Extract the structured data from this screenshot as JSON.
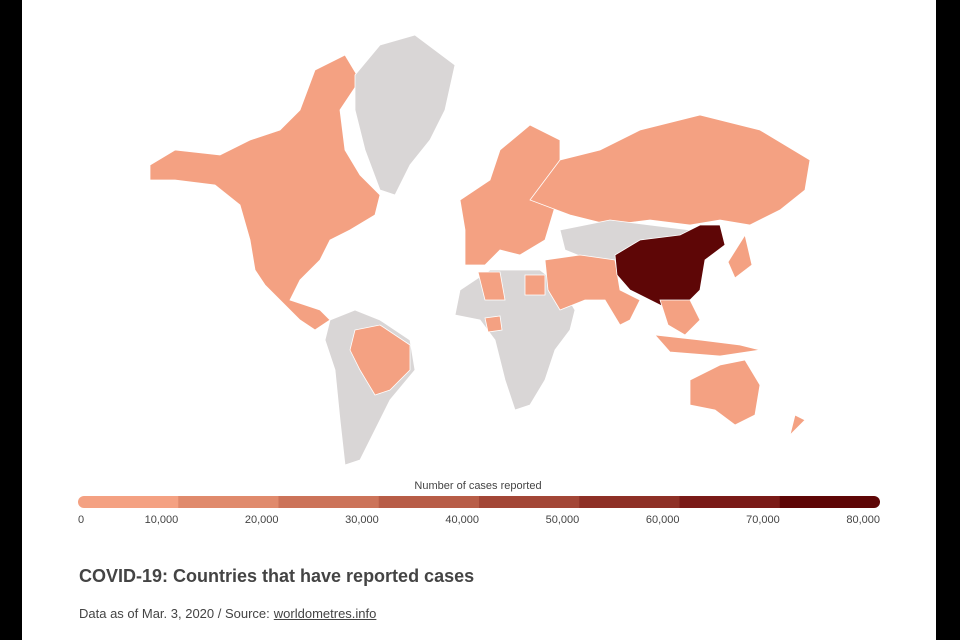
{
  "map": {
    "legend": {
      "title": "Number of cases reported",
      "ticks": [
        0,
        {
          "value": 10000,
          "label": "10,000"
        },
        {
          "value": 20000,
          "label": "20,000"
        },
        {
          "value": 30000,
          "label": "30,000"
        },
        {
          "value": 40000,
          "label": "40,000"
        },
        {
          "value": 50000,
          "label": "50,000"
        },
        {
          "value": 60000,
          "label": "60,000"
        },
        {
          "value": 70000,
          "label": "70,000"
        },
        {
          "value": 80000,
          "label": "80,000"
        }
      ],
      "colors": [
        "#f4a182",
        "#e08a6c",
        "#cc7359",
        "#b85d47",
        "#a34636",
        "#8e3026",
        "#7a1a17",
        "#5e0606"
      ]
    }
  },
  "title": "COVID-19: Countries that have reported cases",
  "source": {
    "prefix": "Data as of Mar. 3, 2020 / Source:",
    "link": "worldometres.info"
  }
}
